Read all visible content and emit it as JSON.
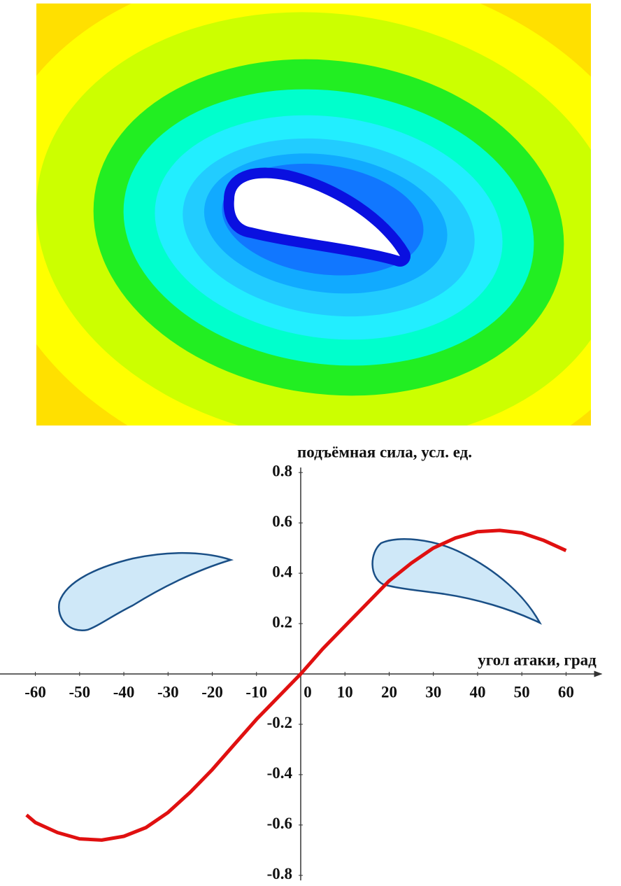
{
  "chart_data": {
    "type": "line",
    "y_label": "подъёмная сила, усл. ед.",
    "x_label": "угол атаки, град",
    "x": [
      -62,
      -60,
      -55,
      -50,
      -45,
      -40,
      -35,
      -30,
      -25,
      -20,
      -15,
      -10,
      -5,
      0,
      5,
      10,
      15,
      20,
      25,
      30,
      35,
      40,
      45,
      50,
      55,
      60
    ],
    "values": [
      -0.56,
      -0.59,
      -0.63,
      -0.655,
      -0.66,
      -0.645,
      -0.61,
      -0.55,
      -0.47,
      -0.38,
      -0.28,
      -0.18,
      -0.09,
      0,
      0.1,
      0.19,
      0.28,
      0.37,
      0.44,
      0.5,
      0.54,
      0.565,
      0.57,
      0.56,
      0.53,
      0.49
    ],
    "color": "#e01010",
    "xlim": [
      -68,
      68
    ],
    "ylim": [
      -0.82,
      0.82
    ],
    "xticks": [
      -60,
      -50,
      -40,
      -30,
      -20,
      -10,
      0,
      10,
      20,
      30,
      40,
      50,
      60
    ],
    "yticks": [
      0.8,
      0.6,
      0.4,
      0.2,
      -0.2,
      -0.4,
      -0.6,
      -0.8
    ]
  }
}
